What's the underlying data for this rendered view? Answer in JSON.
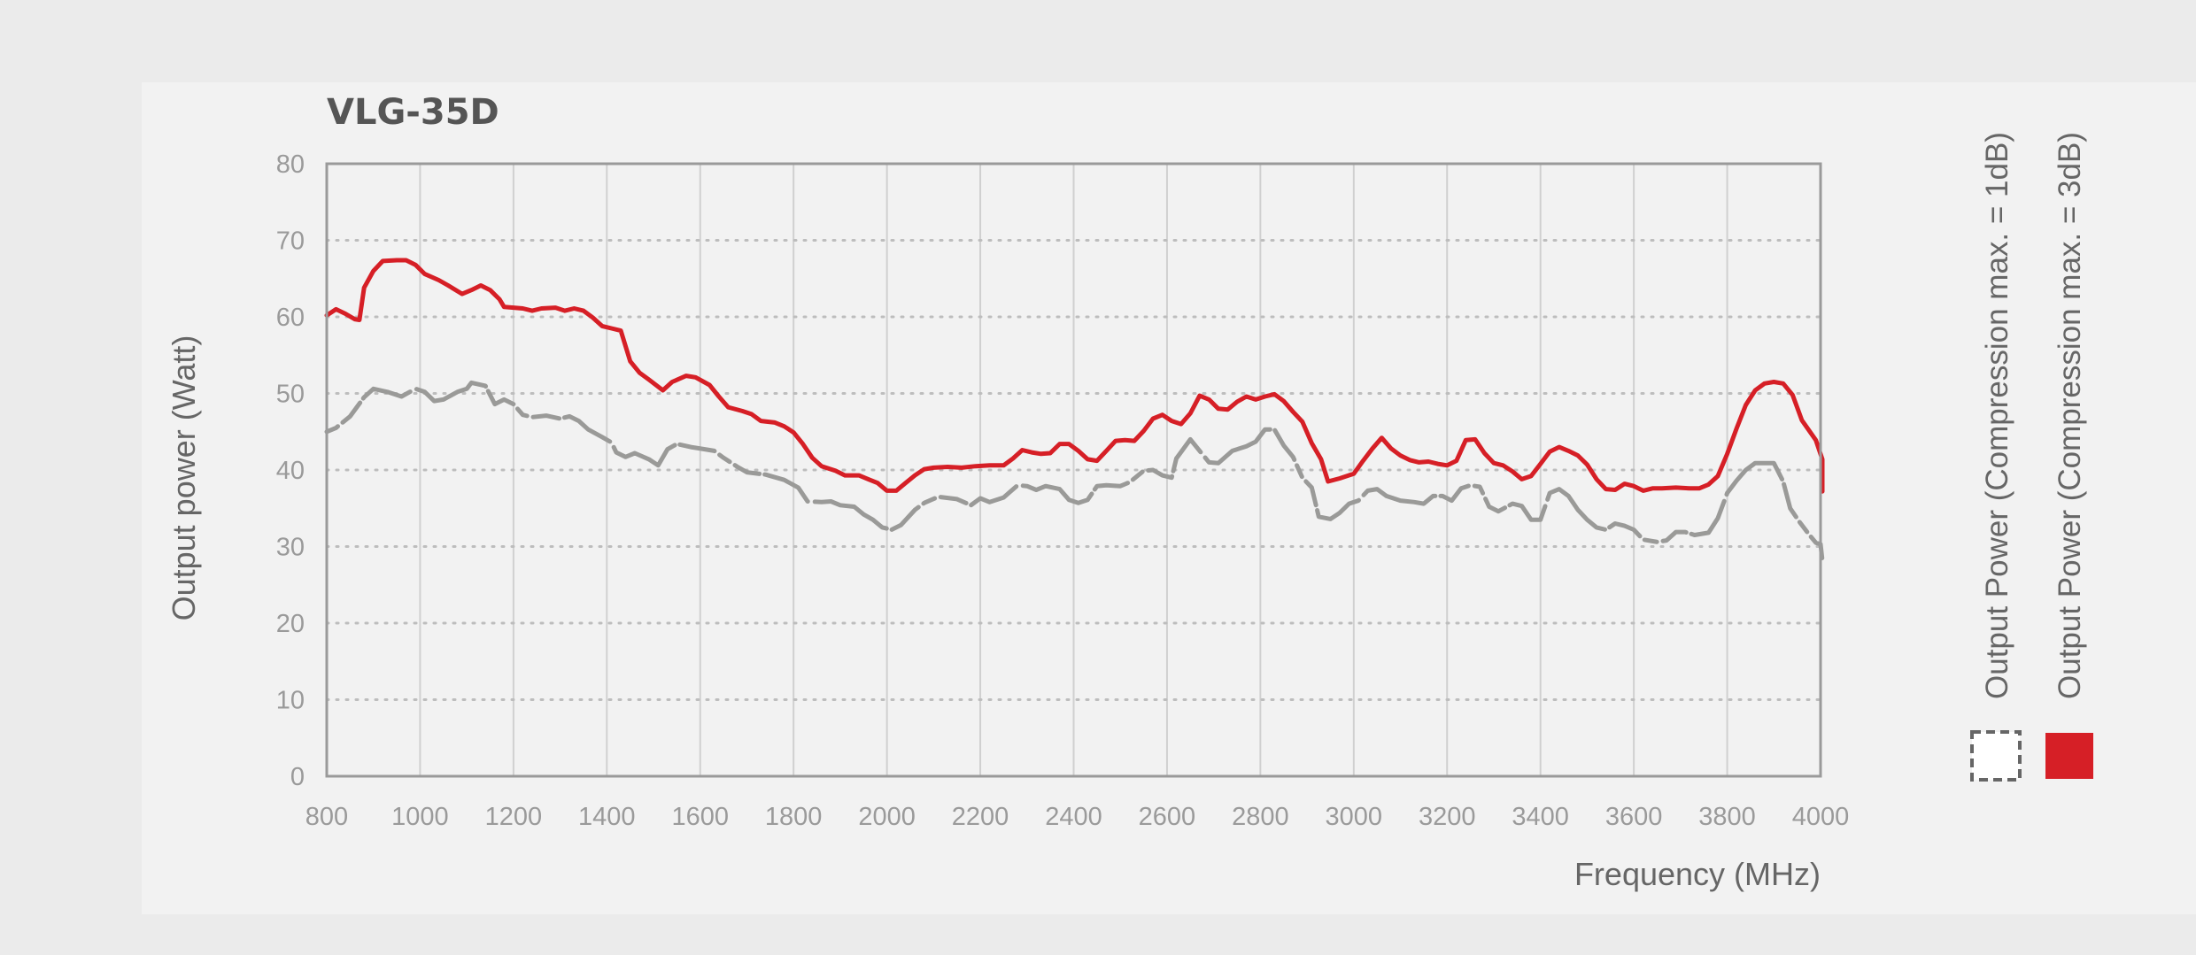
{
  "chart_data": {
    "type": "line",
    "title": "VLG-35D",
    "xlabel": "Frequency (MHz)",
    "ylabel": "Output power (Watt)",
    "xlim": [
      800,
      4000
    ],
    "ylim": [
      0,
      80
    ],
    "x_ticks": [
      800,
      1000,
      1200,
      1400,
      1600,
      1800,
      2000,
      2200,
      2400,
      2600,
      2800,
      3000,
      3200,
      3400,
      3600,
      3800,
      4000
    ],
    "y_ticks": [
      0,
      10,
      20,
      30,
      40,
      50,
      60,
      70,
      80
    ],
    "grid": "on",
    "legend_position": "right",
    "series": [
      {
        "name": "Output Power (Compression max. = 1dB)",
        "color": "#9a9a98",
        "legend_swatch": "dashed-outline",
        "points": [
          [
            800,
            45
          ],
          [
            820,
            45.5
          ],
          [
            850,
            47
          ],
          [
            880,
            49.5
          ],
          [
            900,
            50.6
          ],
          [
            930,
            50.2
          ],
          [
            960,
            49.6
          ],
          [
            990,
            50.6
          ],
          [
            1010,
            50.2
          ],
          [
            1030,
            49
          ],
          [
            1050,
            49.2
          ],
          [
            1080,
            50.2
          ],
          [
            1100,
            50.6
          ],
          [
            1110,
            51.4
          ],
          [
            1140,
            51
          ],
          [
            1160,
            48.6
          ],
          [
            1180,
            49.2
          ],
          [
            1200,
            48.6
          ],
          [
            1220,
            47.2
          ],
          [
            1240,
            46.9
          ],
          [
            1270,
            47.1
          ],
          [
            1300,
            46.7
          ],
          [
            1320,
            47
          ],
          [
            1340,
            46.4
          ],
          [
            1360,
            45.3
          ],
          [
            1390,
            44.3
          ],
          [
            1410,
            43.6
          ],
          [
            1420,
            42.3
          ],
          [
            1440,
            41.7
          ],
          [
            1460,
            42.2
          ],
          [
            1490,
            41.4
          ],
          [
            1510,
            40.6
          ],
          [
            1530,
            42.7
          ],
          [
            1550,
            43.4
          ],
          [
            1580,
            43
          ],
          [
            1610,
            42.7
          ],
          [
            1630,
            42.5
          ],
          [
            1650,
            41.6
          ],
          [
            1680,
            40.4
          ],
          [
            1700,
            39.7
          ],
          [
            1740,
            39.4
          ],
          [
            1780,
            38.7
          ],
          [
            1810,
            37.7
          ],
          [
            1830,
            35.9
          ],
          [
            1860,
            35.8
          ],
          [
            1880,
            35.9
          ],
          [
            1900,
            35.4
          ],
          [
            1930,
            35.2
          ],
          [
            1950,
            34.2
          ],
          [
            1970,
            33.5
          ],
          [
            1990,
            32.5
          ],
          [
            2010,
            32.2
          ],
          [
            2030,
            32.8
          ],
          [
            2060,
            34.8
          ],
          [
            2080,
            35.7
          ],
          [
            2110,
            36.5
          ],
          [
            2150,
            36.2
          ],
          [
            2180,
            35.4
          ],
          [
            2200,
            36.3
          ],
          [
            2220,
            35.8
          ],
          [
            2250,
            36.4
          ],
          [
            2280,
            38
          ],
          [
            2300,
            37.9
          ],
          [
            2320,
            37.4
          ],
          [
            2340,
            37.9
          ],
          [
            2370,
            37.5
          ],
          [
            2390,
            36.1
          ],
          [
            2410,
            35.7
          ],
          [
            2430,
            36.1
          ],
          [
            2450,
            37.9
          ],
          [
            2470,
            38
          ],
          [
            2500,
            37.9
          ],
          [
            2520,
            38.4
          ],
          [
            2550,
            39.9
          ],
          [
            2570,
            40
          ],
          [
            2590,
            39.3
          ],
          [
            2610,
            39
          ],
          [
            2620,
            41.5
          ],
          [
            2650,
            44
          ],
          [
            2670,
            42.5
          ],
          [
            2690,
            41
          ],
          [
            2710,
            40.9
          ],
          [
            2740,
            42.5
          ],
          [
            2770,
            43.1
          ],
          [
            2790,
            43.7
          ],
          [
            2810,
            45.3
          ],
          [
            2830,
            45.3
          ],
          [
            2850,
            43.2
          ],
          [
            2870,
            41.7
          ],
          [
            2890,
            39
          ],
          [
            2910,
            37.7
          ],
          [
            2925,
            33.9
          ],
          [
            2950,
            33.6
          ],
          [
            2970,
            34.4
          ],
          [
            2990,
            35.6
          ],
          [
            3010,
            36
          ],
          [
            3030,
            37.3
          ],
          [
            3050,
            37.5
          ],
          [
            3070,
            36.6
          ],
          [
            3100,
            36
          ],
          [
            3130,
            35.8
          ],
          [
            3150,
            35.6
          ],
          [
            3170,
            36.6
          ],
          [
            3190,
            36.6
          ],
          [
            3210,
            36
          ],
          [
            3230,
            37.6
          ],
          [
            3250,
            38
          ],
          [
            3270,
            37.8
          ],
          [
            3290,
            35.2
          ],
          [
            3310,
            34.6
          ],
          [
            3340,
            35.6
          ],
          [
            3360,
            35.3
          ],
          [
            3380,
            33.5
          ],
          [
            3400,
            33.5
          ],
          [
            3420,
            37
          ],
          [
            3440,
            37.5
          ],
          [
            3460,
            36.6
          ],
          [
            3480,
            34.8
          ],
          [
            3500,
            33.5
          ],
          [
            3520,
            32.5
          ],
          [
            3540,
            32.2
          ],
          [
            3560,
            33
          ],
          [
            3580,
            32.7
          ],
          [
            3600,
            32.2
          ],
          [
            3620,
            30.9
          ],
          [
            3650,
            30.6
          ],
          [
            3670,
            30.8
          ],
          [
            3690,
            31.9
          ],
          [
            3710,
            31.9
          ],
          [
            3730,
            31.5
          ],
          [
            3760,
            31.8
          ],
          [
            3780,
            33.7
          ],
          [
            3800,
            37
          ],
          [
            3820,
            38.6
          ],
          [
            3840,
            40
          ],
          [
            3860,
            40.9
          ],
          [
            3880,
            40.9
          ],
          [
            3900,
            40.9
          ],
          [
            3920,
            38.5
          ],
          [
            3935,
            35
          ],
          [
            3955,
            33.2
          ],
          [
            3975,
            31.6
          ],
          [
            3990,
            30.5
          ],
          [
            4000,
            30.3
          ],
          [
            4005,
            28.2
          ]
        ]
      },
      {
        "name": "Output Power (Compression max. = 3dB)",
        "color": "#d61f26",
        "legend_swatch": "filled",
        "points": [
          [
            800,
            60.2
          ],
          [
            820,
            61
          ],
          [
            840,
            60.4
          ],
          [
            860,
            59.7
          ],
          [
            870,
            59.6
          ],
          [
            880,
            63.8
          ],
          [
            900,
            66
          ],
          [
            920,
            67.3
          ],
          [
            950,
            67.4
          ],
          [
            970,
            67.4
          ],
          [
            990,
            66.8
          ],
          [
            1010,
            65.6
          ],
          [
            1040,
            64.8
          ],
          [
            1060,
            64.1
          ],
          [
            1090,
            63
          ],
          [
            1110,
            63.5
          ],
          [
            1130,
            64.1
          ],
          [
            1150,
            63.5
          ],
          [
            1170,
            62.3
          ],
          [
            1180,
            61.3
          ],
          [
            1200,
            61.2
          ],
          [
            1220,
            61.1
          ],
          [
            1240,
            60.8
          ],
          [
            1260,
            61.1
          ],
          [
            1290,
            61.2
          ],
          [
            1310,
            60.8
          ],
          [
            1330,
            61.1
          ],
          [
            1350,
            60.8
          ],
          [
            1370,
            59.9
          ],
          [
            1390,
            58.8
          ],
          [
            1410,
            58.5
          ],
          [
            1430,
            58.2
          ],
          [
            1450,
            54.2
          ],
          [
            1470,
            52.7
          ],
          [
            1490,
            51.8
          ],
          [
            1520,
            50.4
          ],
          [
            1540,
            51.5
          ],
          [
            1570,
            52.3
          ],
          [
            1590,
            52.1
          ],
          [
            1620,
            51.1
          ],
          [
            1640,
            49.6
          ],
          [
            1660,
            48.2
          ],
          [
            1690,
            47.7
          ],
          [
            1710,
            47.3
          ],
          [
            1730,
            46.4
          ],
          [
            1760,
            46.2
          ],
          [
            1780,
            45.7
          ],
          [
            1800,
            44.9
          ],
          [
            1820,
            43.4
          ],
          [
            1840,
            41.6
          ],
          [
            1860,
            40.5
          ],
          [
            1890,
            39.9
          ],
          [
            1910,
            39.3
          ],
          [
            1940,
            39.3
          ],
          [
            1960,
            38.8
          ],
          [
            1980,
            38.3
          ],
          [
            2000,
            37.3
          ],
          [
            2020,
            37.3
          ],
          [
            2040,
            38.3
          ],
          [
            2060,
            39.3
          ],
          [
            2080,
            40.1
          ],
          [
            2100,
            40.3
          ],
          [
            2130,
            40.4
          ],
          [
            2160,
            40.3
          ],
          [
            2190,
            40.5
          ],
          [
            2220,
            40.6
          ],
          [
            2250,
            40.6
          ],
          [
            2270,
            41.5
          ],
          [
            2290,
            42.6
          ],
          [
            2310,
            42.3
          ],
          [
            2330,
            42.1
          ],
          [
            2350,
            42.2
          ],
          [
            2370,
            43.4
          ],
          [
            2390,
            43.4
          ],
          [
            2410,
            42.5
          ],
          [
            2430,
            41.4
          ],
          [
            2450,
            41.2
          ],
          [
            2470,
            42.5
          ],
          [
            2490,
            43.8
          ],
          [
            2510,
            43.9
          ],
          [
            2530,
            43.8
          ],
          [
            2550,
            45.1
          ],
          [
            2570,
            46.7
          ],
          [
            2590,
            47.2
          ],
          [
            2610,
            46.4
          ],
          [
            2630,
            46
          ],
          [
            2650,
            47.4
          ],
          [
            2670,
            49.7
          ],
          [
            2690,
            49.2
          ],
          [
            2710,
            48
          ],
          [
            2730,
            47.9
          ],
          [
            2750,
            48.9
          ],
          [
            2770,
            49.6
          ],
          [
            2790,
            49.2
          ],
          [
            2810,
            49.6
          ],
          [
            2830,
            49.9
          ],
          [
            2850,
            49
          ],
          [
            2870,
            47.6
          ],
          [
            2890,
            46.3
          ],
          [
            2910,
            43.5
          ],
          [
            2930,
            41.4
          ],
          [
            2945,
            38.5
          ],
          [
            2970,
            38.9
          ],
          [
            3000,
            39.5
          ],
          [
            3020,
            41.2
          ],
          [
            3040,
            42.8
          ],
          [
            3060,
            44.2
          ],
          [
            3080,
            42.8
          ],
          [
            3100,
            41.9
          ],
          [
            3120,
            41.3
          ],
          [
            3140,
            41
          ],
          [
            3160,
            41.1
          ],
          [
            3180,
            40.8
          ],
          [
            3200,
            40.6
          ],
          [
            3220,
            41.2
          ],
          [
            3240,
            43.9
          ],
          [
            3260,
            44
          ],
          [
            3280,
            42.2
          ],
          [
            3300,
            40.9
          ],
          [
            3320,
            40.6
          ],
          [
            3340,
            39.8
          ],
          [
            3360,
            38.8
          ],
          [
            3380,
            39.2
          ],
          [
            3400,
            40.8
          ],
          [
            3420,
            42.4
          ],
          [
            3440,
            43
          ],
          [
            3460,
            42.5
          ],
          [
            3480,
            41.9
          ],
          [
            3500,
            40.7
          ],
          [
            3520,
            38.8
          ],
          [
            3540,
            37.5
          ],
          [
            3560,
            37.4
          ],
          [
            3580,
            38.2
          ],
          [
            3600,
            37.9
          ],
          [
            3620,
            37.3
          ],
          [
            3640,
            37.6
          ],
          [
            3660,
            37.6
          ],
          [
            3690,
            37.7
          ],
          [
            3720,
            37.6
          ],
          [
            3740,
            37.6
          ],
          [
            3760,
            38.1
          ],
          [
            3780,
            39.2
          ],
          [
            3800,
            42.1
          ],
          [
            3820,
            45.4
          ],
          [
            3840,
            48.5
          ],
          [
            3860,
            50.4
          ],
          [
            3880,
            51.3
          ],
          [
            3900,
            51.5
          ],
          [
            3920,
            51.3
          ],
          [
            3940,
            49.8
          ],
          [
            3960,
            46.5
          ],
          [
            3990,
            43.9
          ],
          [
            4020,
            41.4
          ],
          [
            4050,
            38.9
          ],
          [
            4070,
            37.2
          ]
        ]
      }
    ]
  }
}
